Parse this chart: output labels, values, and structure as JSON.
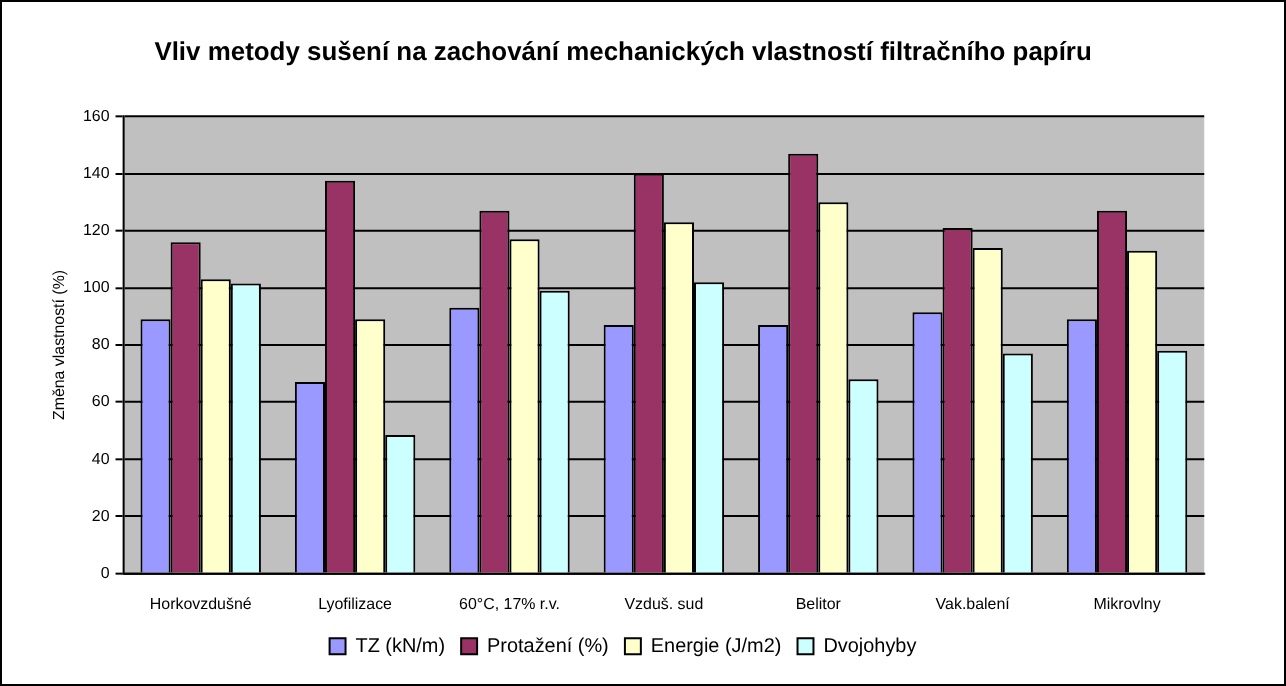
{
  "chart_data": {
    "type": "bar",
    "title": "Vliv metody sušení na zachování mechanických vlastností filtračního papíru",
    "ylabel": "Změna vlastností (%)",
    "categories": [
      "Horkovzdušné",
      "Lyofilizace",
      "60°C, 17% r.v.",
      "Vzduš. sud",
      "Belitor",
      "Vak.balení",
      "Mikrovlny"
    ],
    "series": [
      {
        "name": "TZ (kN/m)",
        "color": "#9999ff",
        "values": [
          89,
          67,
          93,
          87,
          87,
          91.5,
          89
        ]
      },
      {
        "name": "Protažení (%)",
        "color": "#993366",
        "values": [
          116,
          137.5,
          127,
          140,
          147,
          121,
          127
        ]
      },
      {
        "name": "Energie (J/m2)",
        "color": "#ffffcc",
        "values": [
          103,
          89,
          117,
          123,
          130,
          114,
          113
        ]
      },
      {
        "name": "Dvojohyby",
        "color": "#ccffff",
        "values": [
          101.5,
          48.5,
          99,
          102,
          68,
          77,
          78
        ]
      }
    ],
    "ylim": [
      0,
      160
    ],
    "yticks": [
      0,
      20,
      40,
      60,
      80,
      100,
      120,
      140,
      160
    ],
    "grid": "y",
    "legend": "bottom"
  }
}
